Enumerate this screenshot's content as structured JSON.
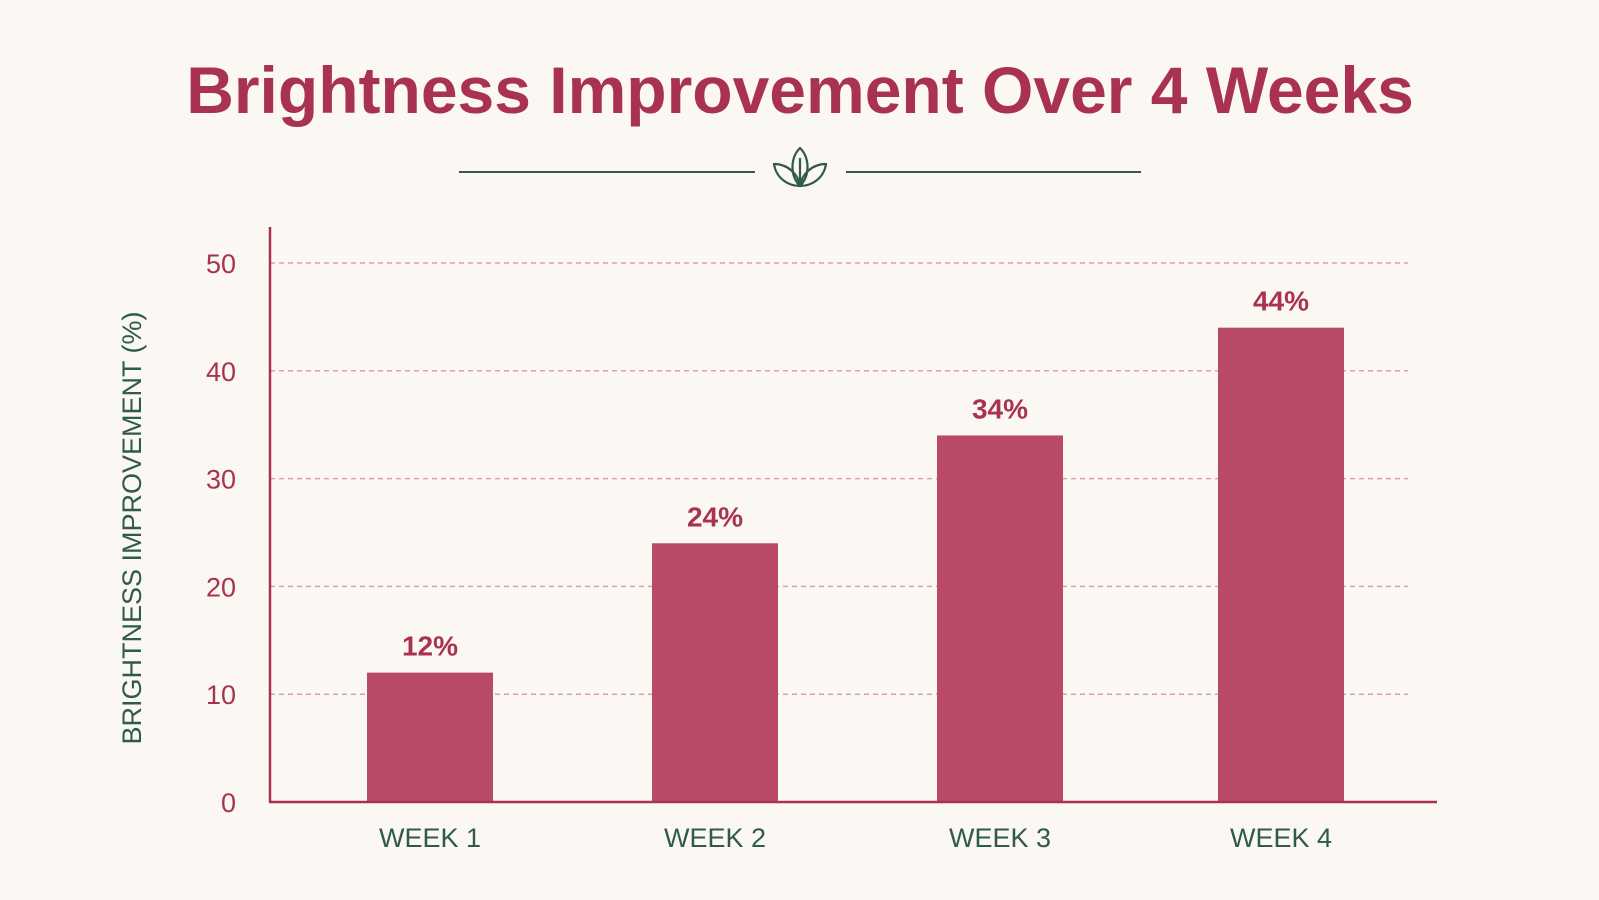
{
  "colors": {
    "background": "#fbf7f2",
    "bar": "#b84a68",
    "accent": "#a8324f",
    "secondary": "#2f5a4e",
    "grid": "#d9a0ae"
  },
  "ornament": {
    "icon": "leaf-sprig-icon"
  },
  "chart_data": {
    "type": "bar",
    "title": "Brightness Improvement Over 4 Weeks",
    "xlabel": "",
    "ylabel": "BRIGHTNESS IMPROVEMENT (%)",
    "categories": [
      "WEEK 1",
      "WEEK 2",
      "WEEK 3",
      "WEEK 4"
    ],
    "values": [
      12,
      24,
      34,
      44
    ],
    "data_labels": [
      "12%",
      "24%",
      "34%",
      "44%"
    ],
    "yticks": [
      0,
      10,
      20,
      30,
      40,
      50
    ],
    "ylim": [
      0,
      53
    ],
    "grid": true,
    "legend": "none"
  }
}
